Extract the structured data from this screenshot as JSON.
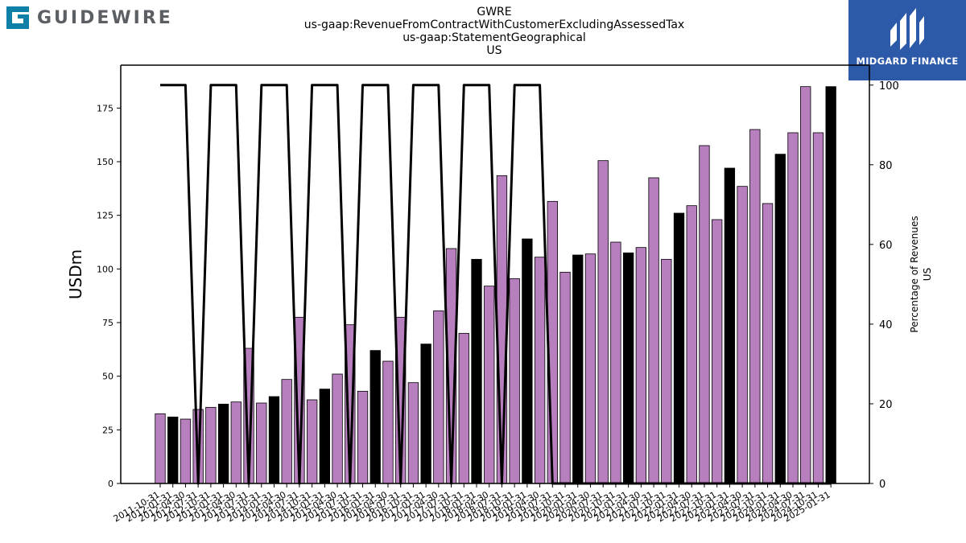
{
  "branding": {
    "left_logo_text": "GUIDEWIRE",
    "right_logo_text": "MIDGARD FINANCE",
    "left_logo_color": "#0e7fa6",
    "right_logo_bg": "#2c5aa8"
  },
  "chart_data": {
    "type": "bar",
    "title_lines": [
      "GWRE",
      "us-gaap:RevenueFromContractWithCustomerExcludingAssessedTax",
      "us-gaap:StatementGeographical",
      "US"
    ],
    "xlabel": "",
    "ylabel": "USDm",
    "y2label_lines": [
      "Percentage of Revenues",
      "US"
    ],
    "ylim": [
      0,
      195
    ],
    "y2lim": [
      0,
      105
    ],
    "yticks": [
      0,
      25,
      50,
      75,
      100,
      125,
      150,
      175
    ],
    "y2ticks": [
      0,
      20,
      40,
      60,
      80,
      100
    ],
    "colors": {
      "quarterly": "#b77fbd",
      "annual": "#000000",
      "line": "#000000"
    },
    "categories": [
      "2011-10-31",
      "2012-01-31",
      "2012-04-30",
      "2012-07-31",
      "2012-10-31",
      "2013-01-31",
      "2013-04-30",
      "2013-07-31",
      "2013-10-31",
      "2014-01-31",
      "2014-04-30",
      "2014-07-31",
      "2014-10-31",
      "2015-01-31",
      "2015-04-30",
      "2015-07-31",
      "2015-10-31",
      "2016-01-31",
      "2016-04-30",
      "2016-07-31",
      "2016-10-31",
      "2017-01-31",
      "2017-04-30",
      "2017-07-31",
      "2017-10-31",
      "2018-01-31",
      "2018-04-30",
      "2018-07-31",
      "2018-10-31",
      "2019-01-31",
      "2019-04-30",
      "2019-07-31",
      "2019-10-31",
      "2020-01-31",
      "2020-04-30",
      "2020-07-31",
      "2020-10-31",
      "2021-01-31",
      "2021-04-30",
      "2021-07-31",
      "2021-10-31",
      "2022-01-31",
      "2022-04-30",
      "2022-07-31",
      "2022-10-31",
      "2023-01-31",
      "2023-04-30",
      "2023-07-31",
      "2023-10-31",
      "2024-01-31",
      "2024-04-30",
      "2024-07-31",
      "2024-10-31",
      "2025-01-31"
    ],
    "xtick_labels": [
      "2011-10-31",
      "2012-01-31",
      "2012-04-30",
      "2012-07-31",
      "2012-10-31",
      "2013-01-31",
      "2013-04-30",
      "2013-07-31",
      "2013-10-31",
      "2014-01-31",
      "2014-04-30",
      "2014-07-31",
      "2014-10-31",
      "2015-01-31",
      "2015-04-30",
      "2015-07-31",
      "2015-10-31",
      "2016-01-31",
      "2016-04-30",
      "2016-07-31",
      "2016-10-31",
      "2017-01-31",
      "2017-04-30",
      "2017-07-31",
      "2017-10-31",
      "2018-01-31",
      "2018-04-30",
      "2018-07-31",
      "2018-10-31",
      "2019-01-31",
      "2019-04-30",
      "2019-07-31",
      "2019-10-31",
      "2020-01-31",
      "2020-04-30",
      "2020-07-31",
      "2020-10-31",
      "2021-01-31",
      "2021-04-30",
      "2021-07-31",
      "2021-10-31",
      "2022-01-31",
      "2022-04-30",
      "2022-07-31",
      "2022-10-31",
      "2023-01-31",
      "2023-04-30",
      "2023-07-31",
      "2023-10-31",
      "2024-01-31",
      "2024-04-30",
      "2024-07-31",
      "2024-10-31",
      "2025-01-31"
    ],
    "series": [
      {
        "name": "",
        "kind": "bar",
        "values": [
          32.5,
          31.0,
          30.0,
          34.5,
          35.5,
          37.0,
          38.0,
          63.0,
          37.5,
          40.5,
          48.5,
          77.5,
          39.0,
          44.0,
          51.0,
          74.0,
          43.0,
          62.0,
          57.0,
          77.5,
          47.0,
          65.0,
          80.5,
          109.5,
          70.0,
          104.5,
          92.0,
          143.5,
          95.5,
          114.0,
          105.5,
          131.5,
          98.5,
          106.5,
          107.0,
          150.5,
          112.5,
          107.5,
          110.0,
          142.5,
          104.5,
          126.0,
          129.5,
          157.5,
          123.0,
          147.0,
          138.5,
          165.0,
          130.5,
          153.5,
          163.5,
          185.0,
          163.5,
          185.0
        ],
        "period": [
          "Q",
          "FY",
          "Q",
          "Q",
          "Q",
          "FY",
          "Q",
          "Q",
          "Q",
          "FY",
          "Q",
          "Q",
          "Q",
          "FY",
          "Q",
          "Q",
          "Q",
          "FY",
          "Q",
          "Q",
          "Q",
          "FY",
          "Q",
          "Q",
          "Q",
          "FY",
          "Q",
          "Q",
          "Q",
          "FY",
          "Q",
          "Q",
          "Q",
          "FY",
          "Q",
          "Q",
          "Q",
          "FY",
          "Q",
          "Q",
          "Q",
          "FY",
          "Q",
          "Q",
          "Q",
          "FY",
          "Q",
          "Q",
          "Q",
          "FY",
          "Q",
          "Q",
          "Q",
          "FY"
        ]
      },
      {
        "name": "",
        "kind": "line",
        "axis": "right",
        "values": [
          100,
          100,
          100,
          0,
          100,
          100,
          100,
          0,
          100,
          100,
          100,
          0,
          100,
          100,
          100,
          0,
          100,
          100,
          100,
          0,
          100,
          100,
          100,
          0,
          100,
          100,
          100,
          0,
          100,
          100,
          100,
          0,
          0,
          0,
          0,
          0,
          0,
          0,
          0,
          0,
          0,
          0,
          0,
          0,
          0,
          0,
          0,
          0,
          0,
          0,
          0,
          0,
          0,
          0
        ]
      }
    ],
    "grid": false,
    "legend": "none"
  }
}
